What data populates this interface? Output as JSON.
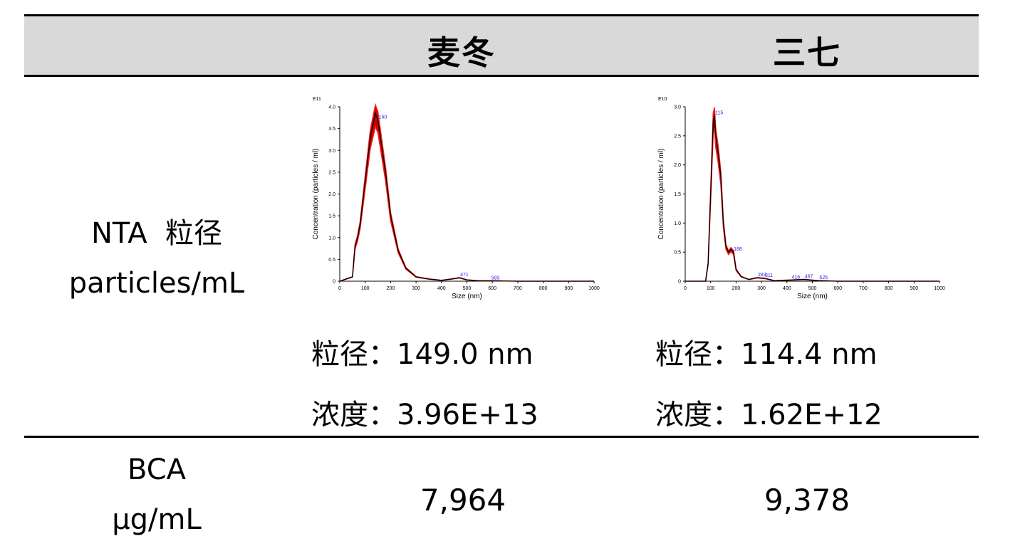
{
  "columns": {
    "col1": "麦冬",
    "col2": "三七"
  },
  "rows": {
    "nta": {
      "label_line1": "NTA  粒径",
      "label_line2": "particles/mL"
    },
    "bca": {
      "label_line1": "BCA",
      "label_line2": "μg/mL"
    }
  },
  "col1": {
    "size_label": "粒径：",
    "size_value": "149.0 nm",
    "conc_label": "浓度：",
    "conc_value": "3.96E+13",
    "bca_value": "7,964"
  },
  "col2": {
    "size_label": "粒径：",
    "size_value": "114.4 nm",
    "conc_label": "浓度：",
    "conc_value": "1.62E+12",
    "bca_value": "9,378"
  },
  "colors": {
    "band_fill": "#cc0000",
    "band_edge": "#ff1a1a",
    "mean_line": "#000000",
    "peak_label": "#2020ff",
    "header_bg": "#d9d9d9"
  },
  "chart_data": [
    {
      "type": "area",
      "title": "",
      "exponent_label": "E11",
      "xlabel": "Size (nm)",
      "ylabel": "Concentration (particles / ml)",
      "xlim": [
        0,
        1000
      ],
      "ylim": [
        0,
        4.0
      ],
      "xticks": [
        0,
        100,
        200,
        300,
        400,
        500,
        600,
        700,
        800,
        900,
        1000
      ],
      "yticks": [
        0,
        0.5,
        1.0,
        1.5,
        2.0,
        2.5,
        3.0,
        3.5,
        4.0
      ],
      "ytick_labels": [
        "0",
        "0.5",
        "1.0",
        "1.5",
        "2.0",
        "2.5",
        "3.0",
        "3.5",
        "4.0"
      ],
      "series": [
        {
          "x": [
            0,
            50,
            60,
            70,
            80,
            100,
            120,
            140,
            150,
            160,
            180,
            200,
            230,
            260,
            300,
            350,
            400,
            440,
            470,
            500,
            550,
            600,
            700,
            1000
          ],
          "y": [
            0,
            0.1,
            0.8,
            1.0,
            1.3,
            2.3,
            3.3,
            3.85,
            3.7,
            3.3,
            2.5,
            1.5,
            0.7,
            0.3,
            0.1,
            0.05,
            0.02,
            0.05,
            0.08,
            0.03,
            0.01,
            0.01,
            0,
            0
          ]
        }
      ],
      "peak_labels": [
        {
          "x": 150,
          "label": "150"
        },
        {
          "x": 471,
          "label": "471"
        },
        {
          "x": 593,
          "label": "593"
        }
      ]
    },
    {
      "type": "area",
      "title": "",
      "exponent_label": "E10",
      "xlabel": "Size (nm)",
      "ylabel": "Concentration (particles / ml)",
      "xlim": [
        0,
        1000
      ],
      "ylim": [
        0,
        3.0
      ],
      "xticks": [
        0,
        100,
        200,
        300,
        400,
        500,
        600,
        700,
        800,
        900,
        1000
      ],
      "yticks": [
        0,
        0.5,
        1.0,
        1.5,
        2.0,
        2.5,
        3.0
      ],
      "ytick_labels": [
        "0",
        "0.5",
        "1.0",
        "1.5",
        "2.0",
        "2.5",
        "3.0"
      ],
      "series": [
        {
          "x": [
            0,
            80,
            90,
            100,
            110,
            115,
            120,
            130,
            140,
            150,
            160,
            170,
            180,
            190,
            200,
            220,
            250,
            283,
            311,
            350,
            416,
            467,
            525,
            600,
            1000
          ],
          "y": [
            0,
            0,
            0.3,
            1.5,
            2.75,
            2.85,
            2.5,
            2.2,
            1.8,
            1.0,
            0.6,
            0.5,
            0.55,
            0.5,
            0.2,
            0.08,
            0.03,
            0.06,
            0.05,
            0.01,
            0.02,
            0.03,
            0.01,
            0,
            0
          ]
        }
      ],
      "peak_labels": [
        {
          "x": 115,
          "label": "115"
        },
        {
          "x": 188,
          "label": "188"
        },
        {
          "x": 283,
          "label": "283"
        },
        {
          "x": 311,
          "label": "311"
        },
        {
          "x": 416,
          "label": "416"
        },
        {
          "x": 467,
          "label": "467"
        },
        {
          "x": 525,
          "label": "525"
        }
      ]
    }
  ]
}
